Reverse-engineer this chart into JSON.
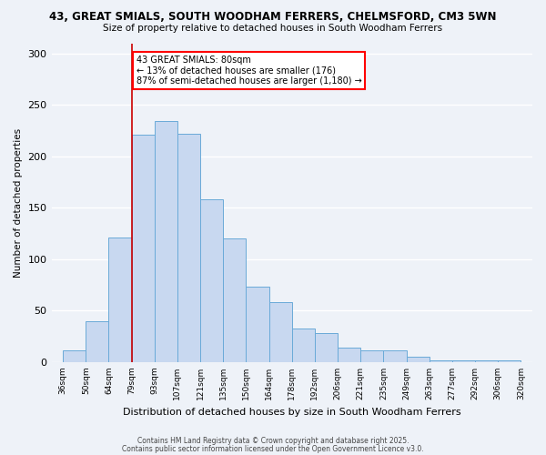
{
  "title1": "43, GREAT SMIALS, SOUTH WOODHAM FERRERS, CHELMSFORD, CM3 5WN",
  "title2": "Size of property relative to detached houses in South Woodham Ferrers",
  "xlabel": "Distribution of detached houses by size in South Woodham Ferrers",
  "ylabel": "Number of detached properties",
  "bar_color": "#c8d8f0",
  "bar_edge_color": "#6aaad8",
  "bin_labels": [
    "36sqm",
    "50sqm",
    "64sqm",
    "79sqm",
    "93sqm",
    "107sqm",
    "121sqm",
    "135sqm",
    "150sqm",
    "164sqm",
    "178sqm",
    "192sqm",
    "206sqm",
    "221sqm",
    "235sqm",
    "249sqm",
    "263sqm",
    "277sqm",
    "292sqm",
    "306sqm",
    "320sqm"
  ],
  "bar_heights": [
    11,
    40,
    121,
    221,
    234,
    222,
    158,
    120,
    73,
    58,
    33,
    28,
    14,
    11,
    11,
    5,
    2,
    2,
    2,
    2
  ],
  "ylim": [
    0,
    310
  ],
  "yticks": [
    0,
    50,
    100,
    150,
    200,
    250,
    300
  ],
  "annotation_title": "43 GREAT SMIALS: 80sqm",
  "annotation_line1": "← 13% of detached houses are smaller (176)",
  "annotation_line2": "87% of semi-detached houses are larger (1,180) →",
  "vline_color": "#cc0000",
  "footnote1": "Contains HM Land Registry data © Crown copyright and database right 2025.",
  "footnote2": "Contains public sector information licensed under the Open Government Licence v3.0.",
  "bg_color": "#eef2f8",
  "grid_color": "white"
}
